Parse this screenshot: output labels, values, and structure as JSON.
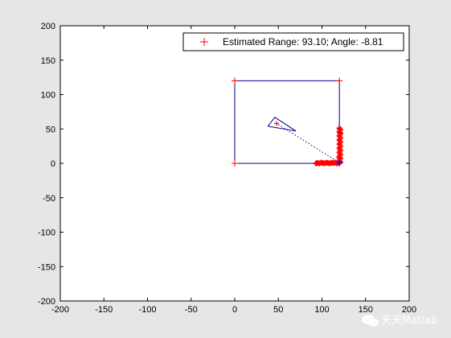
{
  "chart_data": {
    "type": "scatter",
    "title": "",
    "xlabel": "",
    "ylabel": "",
    "xlim": [
      -200,
      200
    ],
    "ylim": [
      -200,
      200
    ],
    "xticks": [
      -200,
      -150,
      -100,
      -50,
      0,
      50,
      100,
      150,
      200
    ],
    "yticks": [
      -200,
      -150,
      -100,
      -50,
      0,
      50,
      100,
      150,
      200
    ],
    "grid": false,
    "legend": {
      "placement": "top-right",
      "entries": [
        {
          "label": "Estimated Range: 93.10; Angle: -8.81",
          "marker": "+",
          "color": "#ff0000"
        }
      ]
    },
    "room_outline": {
      "color": "#00008b",
      "x": [
        0,
        120,
        120,
        0,
        0
      ],
      "y": [
        0,
        0,
        120,
        120,
        0
      ]
    },
    "corner_markers": {
      "color": "#ff0000",
      "x": [
        0,
        120,
        0,
        120
      ],
      "y": [
        0,
        0,
        120,
        120
      ]
    },
    "estimated_positions": {
      "color": "#ff0000",
      "x": [
        93,
        95,
        97,
        99,
        101,
        103,
        105,
        107,
        109,
        111,
        113,
        115,
        117,
        119,
        120,
        121,
        120,
        121,
        120,
        121,
        120,
        121,
        120,
        121,
        120,
        121,
        120,
        121,
        120,
        121,
        120,
        121,
        120,
        121
      ],
      "y": [
        0,
        0.5,
        0,
        1,
        0.5,
        0,
        1,
        0.5,
        0,
        1,
        0.5,
        1,
        0,
        1,
        4,
        7,
        10,
        13,
        16,
        19,
        22,
        25,
        28,
        31,
        34,
        37,
        40,
        43,
        46,
        49,
        51,
        2,
        8,
        44
      ]
    },
    "sensor": {
      "color": "#0000ff",
      "x": 120,
      "y": 1
    },
    "target_marker": {
      "color": "#ff0000",
      "x": 48,
      "y": 58
    },
    "range_line": {
      "color": "#00008b",
      "style": "dotted",
      "x": [
        120,
        48
      ],
      "y": [
        1,
        58
      ]
    },
    "heading_triangle": {
      "color": "#00008b",
      "x": [
        38,
        46,
        70,
        38
      ],
      "y": [
        54,
        67,
        47,
        54
      ]
    }
  },
  "watermark": {
    "text": "天天Matlab",
    "icon": "wechat-bubble-icon",
    "color": "#ffffff"
  }
}
